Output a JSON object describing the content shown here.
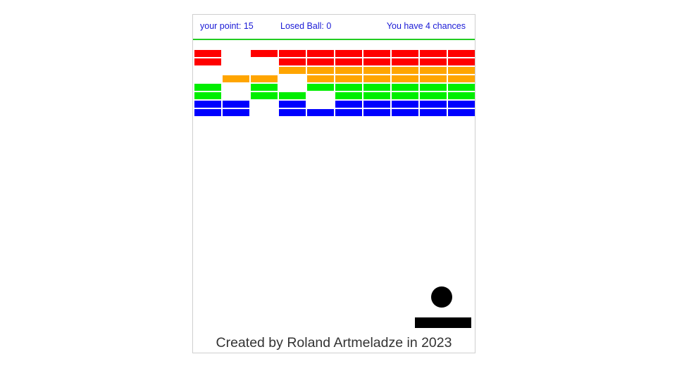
{
  "hud": {
    "points_text": "your point: 15",
    "lost_text": "Losed Ball: 0",
    "chances_text": "You have 4 chances",
    "text_color": "#1a1ad6",
    "divider_color": "#22cc22"
  },
  "game": {
    "columns": 10,
    "rows": 8,
    "row_colors": [
      "#ff0000",
      "#ff0000",
      "#ffa500",
      "#ffa500",
      "#00ee00",
      "#00ee00",
      "#0000ff",
      "#0000ff"
    ],
    "bricks": [
      [
        1,
        0,
        1,
        1,
        1,
        1,
        1,
        1,
        1,
        1
      ],
      [
        1,
        0,
        0,
        1,
        1,
        1,
        1,
        1,
        1,
        1
      ],
      [
        0,
        0,
        0,
        1,
        1,
        1,
        1,
        1,
        1,
        1
      ],
      [
        0,
        1,
        1,
        0,
        1,
        1,
        1,
        1,
        1,
        1
      ],
      [
        1,
        0,
        1,
        0,
        1,
        1,
        1,
        1,
        1,
        1
      ],
      [
        1,
        0,
        1,
        1,
        0,
        1,
        1,
        1,
        1,
        1
      ],
      [
        1,
        1,
        0,
        1,
        0,
        1,
        1,
        1,
        1,
        1
      ],
      [
        1,
        1,
        0,
        1,
        1,
        1,
        1,
        1,
        1,
        1
      ]
    ],
    "ball_color": "#000000",
    "paddle_color": "#000000"
  },
  "footer": {
    "credit": "Created by Roland Artmeladze in 2023"
  }
}
